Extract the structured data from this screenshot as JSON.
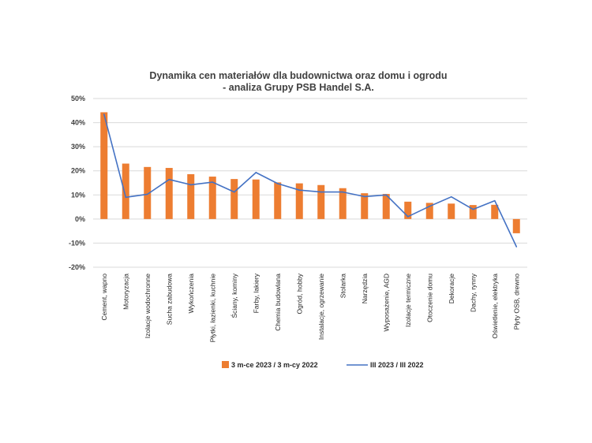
{
  "chart_data": {
    "type": "bar",
    "title_lines": [
      "Dynamika cen materiałów dla budownictwa oraz domu i ogrodu",
      "- analiza Grupy PSB Handel S.A."
    ],
    "categories": [
      "Cement, wapno",
      "Motoryzacja",
      "Izolacje wodochronne",
      "Sucha zabudowa",
      "Wykończenia",
      "Płytki, łazienki, kuchnie",
      "Ściany, kominy",
      "Farby, lakiery",
      "Chemia budowlana",
      "Ogród, hobby",
      "Instalacje, ogrzewanie",
      "Stolarka",
      "Narzędzia",
      "Wyposażenie, AGD",
      "Izolacje termiczne",
      "Otoczenie domu",
      "Dekoracje",
      "Dachy, rynny",
      "Oświetlenie, elektryka",
      "Płyty OSB, drewno"
    ],
    "series": [
      {
        "name": "3 m-ce 2023 / 3 m-cy 2022",
        "kind": "bar",
        "color": "#ED7D31",
        "values": [
          44.3,
          23.0,
          21.6,
          21.2,
          18.6,
          17.6,
          16.6,
          16.4,
          15.2,
          14.8,
          14.1,
          12.8,
          10.7,
          10.4,
          7.2,
          6.7,
          6.4,
          5.8,
          5.9,
          -5.9
        ]
      },
      {
        "name": "III 2023 / III 2022",
        "kind": "line",
        "color": "#4472C4",
        "values": [
          43.5,
          9.0,
          10.3,
          16.4,
          14.2,
          15.3,
          11.2,
          19.3,
          14.7,
          12.0,
          11.2,
          11.2,
          9.3,
          10.0,
          1.0,
          5.3,
          9.2,
          4.0,
          7.6,
          -11.5
        ]
      }
    ],
    "yticks": [
      "50%",
      "40%",
      "30%",
      "20%",
      "10%",
      "0%",
      "-10%",
      "-20%"
    ],
    "ylim": [
      -20,
      50
    ],
    "grid": true,
    "legend_position": "bottom"
  }
}
